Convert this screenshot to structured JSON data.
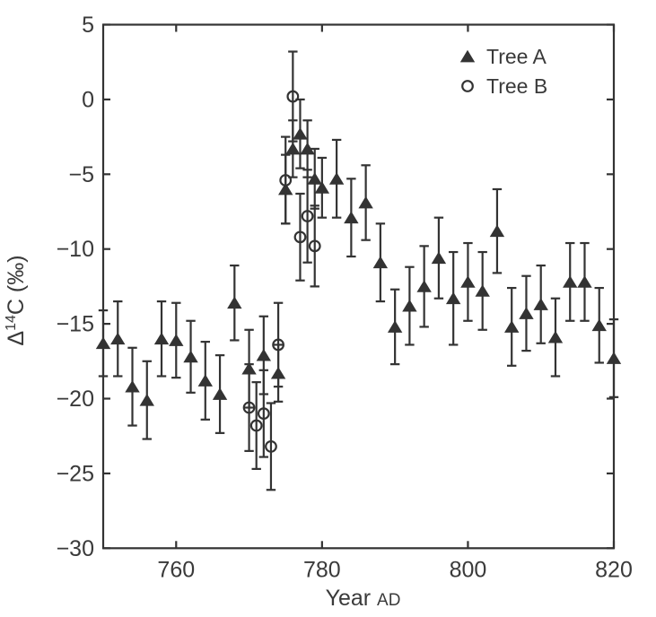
{
  "figure": {
    "background": "#ffffff",
    "ink_color": "#333333",
    "text_color": "#3a3a3a"
  },
  "chart_data": {
    "type": "scatter",
    "title": "",
    "xlabel": "Year",
    "xlabel_suffix": "AD",
    "ylabel_parts": {
      "prefix": "Δ",
      "superscript": "14",
      "suffix": "C (‰)"
    },
    "xlim": [
      750,
      820
    ],
    "ylim": [
      -30,
      5
    ],
    "grid": false,
    "box": true,
    "xticks": [
      {
        "value": 760,
        "label": "760"
      },
      {
        "value": 780,
        "label": "780"
      },
      {
        "value": 800,
        "label": "800"
      },
      {
        "value": 820,
        "label": "820"
      }
    ],
    "yticks": [
      {
        "value": 5,
        "label": "5"
      },
      {
        "value": 0,
        "label": "0"
      },
      {
        "value": -5,
        "label": "−5"
      },
      {
        "value": -10,
        "label": "−10"
      },
      {
        "value": -15,
        "label": "−15"
      },
      {
        "value": -20,
        "label": "−20"
      },
      {
        "value": -25,
        "label": "−25"
      },
      {
        "value": -30,
        "label": "−30"
      }
    ],
    "legend_position": "top-right",
    "series": [
      {
        "name": "Tree A",
        "marker": "filled-triangle",
        "x": [
          750,
          752,
          754,
          756,
          758,
          760,
          762,
          764,
          766,
          768,
          770,
          772,
          774,
          775,
          776,
          777,
          778,
          779,
          780,
          782,
          784,
          786,
          788,
          790,
          792,
          794,
          796,
          798,
          800,
          802,
          804,
          806,
          808,
          810,
          812,
          814,
          816,
          818,
          820
        ],
        "y": [
          -16.3,
          -16.0,
          -19.2,
          -20.1,
          -16.0,
          -16.1,
          -17.2,
          -18.8,
          -19.7,
          -13.6,
          -18.0,
          -17.1,
          -18.3,
          -6.0,
          -3.3,
          -2.3,
          -3.3,
          -5.3,
          -5.9,
          -5.3,
          -7.9,
          -6.9,
          -10.9,
          -15.2,
          -13.8,
          -12.5,
          -10.6,
          -13.3,
          -12.2,
          -12.8,
          -8.8,
          -15.2,
          -14.3,
          -13.7,
          -15.9,
          -12.2,
          -12.2,
          -15.1,
          -17.3
        ],
        "err": [
          2.2,
          2.5,
          2.6,
          2.6,
          2.5,
          2.5,
          2.4,
          2.6,
          2.6,
          2.5,
          2.6,
          2.6,
          1.9,
          2.3,
          1.9,
          2.3,
          1.9,
          2.0,
          2.0,
          2.6,
          2.6,
          2.5,
          2.6,
          2.5,
          2.6,
          2.7,
          2.7,
          3.1,
          2.6,
          2.6,
          2.8,
          2.6,
          2.5,
          2.6,
          2.6,
          2.6,
          2.6,
          2.5,
          2.6
        ]
      },
      {
        "name": "Tree B",
        "marker": "open-circle",
        "x": [
          770,
          771,
          772,
          773,
          774,
          775,
          776,
          777,
          778,
          779
        ],
        "y": [
          -20.6,
          -21.8,
          -21.0,
          -23.2,
          -16.4,
          -5.4,
          0.2,
          -9.2,
          -7.8,
          -9.8
        ],
        "err": [
          2.9,
          2.9,
          2.9,
          2.9,
          2.8,
          2.9,
          3.0,
          2.9,
          3.1,
          2.7
        ]
      }
    ]
  },
  "legend": {
    "items": [
      {
        "label": "Tree A",
        "marker": "filled-triangle"
      },
      {
        "label": "Tree B",
        "marker": "open-circle"
      }
    ]
  }
}
